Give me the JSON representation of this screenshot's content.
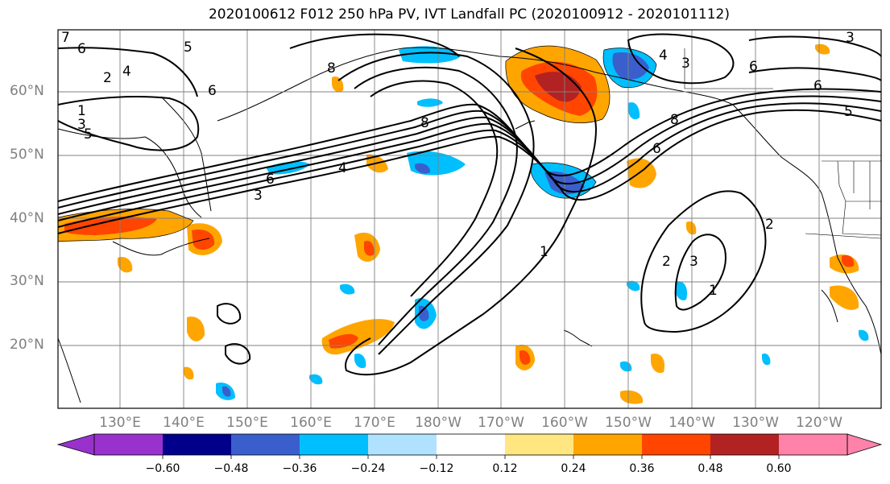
{
  "title": "2020100612 F012 250 hPa PV, IVT Landfall PC (2020100912 - 2020101112)",
  "map": {
    "lat_labels": [
      "60°N",
      "50°N",
      "40°N",
      "30°N",
      "20°N"
    ],
    "lon_labels": [
      "130°E",
      "140°E",
      "150°E",
      "160°E",
      "170°E",
      "180°W",
      "170°W",
      "160°W",
      "150°W",
      "140°W",
      "130°W",
      "120°W"
    ],
    "contour_labels": [
      "1",
      "2",
      "3",
      "4",
      "5",
      "6",
      "7",
      "8"
    ]
  },
  "colorbar": {
    "ticks": [
      "−0.60",
      "−0.48",
      "−0.36",
      "−0.24",
      "−0.12",
      "0.12",
      "0.24",
      "0.36",
      "0.48",
      "0.60"
    ],
    "colors": [
      "#9932cc",
      "#00008b",
      "#3a5fcd",
      "#00bfff",
      "#b0e2ff",
      "#ffffff",
      "#ffe680",
      "#ffa500",
      "#ff4500",
      "#b22222",
      "#ff82ab"
    ]
  }
}
